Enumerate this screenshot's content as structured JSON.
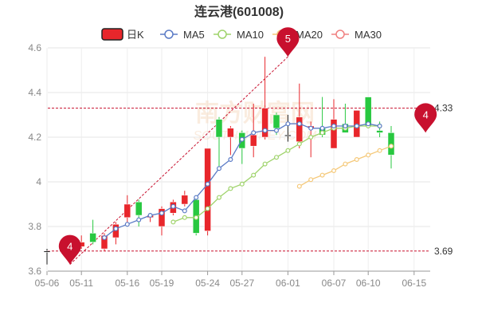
{
  "chart_data": {
    "type": "candlestick",
    "title": "连云港(601008)",
    "legend": [
      {
        "label": "日K",
        "color": "#e8262b",
        "kind": "box"
      },
      {
        "label": "MA5",
        "color": "#5b7bc6",
        "kind": "ring"
      },
      {
        "label": "MA10",
        "color": "#9fd36b",
        "kind": "ring"
      },
      {
        "label": "MA20",
        "color": "#f5c97a",
        "kind": "ring"
      },
      {
        "label": "MA30",
        "color": "#f08080",
        "kind": "ring"
      }
    ],
    "legend_placement": "top",
    "ylim": [
      3.6,
      4.6
    ],
    "y_ticks": [
      "3.6",
      "3.8",
      "4",
      "4.2",
      "4.4",
      "4.6"
    ],
    "x_tick_labels": [
      "05-06",
      "05-11",
      "05-16",
      "05-19",
      "05-24",
      "05-27",
      "06-01",
      "06-07",
      "06-10",
      "06-15"
    ],
    "x_tick_index": [
      0,
      3,
      7,
      10,
      14,
      17,
      21,
      25,
      28,
      32
    ],
    "grid": true,
    "colors": {
      "up": "#e8262b",
      "down": "#28c840",
      "neutral": "#1a1a1a",
      "ref_line": "#c8102e",
      "axis_text": "#888888"
    },
    "candles": [
      {
        "o": 3.69,
        "c": 3.69,
        "h": 3.7,
        "l": 3.63
      },
      {
        "o": 3.69,
        "c": 3.72,
        "h": 3.74,
        "l": 3.69
      },
      {
        "o": 3.71,
        "c": 3.73,
        "h": 3.76,
        "l": 3.7
      },
      {
        "o": 3.77,
        "c": 3.73,
        "h": 3.83,
        "l": 3.72
      },
      {
        "o": 3.7,
        "c": 3.76,
        "h": 3.77,
        "l": 3.69
      },
      {
        "o": 3.75,
        "c": 3.81,
        "h": 3.82,
        "l": 3.72
      },
      {
        "o": 3.84,
        "c": 3.9,
        "h": 3.94,
        "l": 3.8
      },
      {
        "o": 3.91,
        "c": 3.85,
        "h": 3.92,
        "l": 3.8
      },
      {
        "o": 3.84,
        "c": 3.85,
        "h": 3.86,
        "l": 3.82
      },
      {
        "o": 3.8,
        "c": 3.88,
        "h": 3.89,
        "l": 3.76
      },
      {
        "o": 3.86,
        "c": 3.91,
        "h": 3.92,
        "l": 3.85
      },
      {
        "o": 3.9,
        "c": 3.94,
        "h": 3.96,
        "l": 3.89
      },
      {
        "o": 3.92,
        "c": 3.77,
        "h": 3.94,
        "l": 3.76
      },
      {
        "o": 3.78,
        "c": 4.15,
        "h": 4.15,
        "l": 3.76
      },
      {
        "o": 4.28,
        "c": 4.2,
        "h": 4.29,
        "l": 4.05
      },
      {
        "o": 4.2,
        "c": 4.24,
        "h": 4.25,
        "l": 4.12
      },
      {
        "o": 4.22,
        "c": 4.15,
        "h": 4.23,
        "l": 4.08
      },
      {
        "o": 4.16,
        "c": 4.21,
        "h": 4.35,
        "l": 4.11
      },
      {
        "o": 4.2,
        "c": 4.33,
        "h": 4.56,
        "l": 4.19
      },
      {
        "o": 4.3,
        "c": 4.24,
        "h": 4.31,
        "l": 4.21
      },
      {
        "o": 4.21,
        "c": 4.21,
        "h": 4.3,
        "l": 4.18
      },
      {
        "o": 4.18,
        "c": 4.29,
        "h": 4.44,
        "l": 4.15
      },
      {
        "o": 4.24,
        "c": 4.25,
        "h": 4.27,
        "l": 4.11
      },
      {
        "o": 4.24,
        "c": 4.21,
        "h": 4.38,
        "l": 4.2
      },
      {
        "o": 4.15,
        "c": 4.28,
        "h": 4.37,
        "l": 4.15
      },
      {
        "o": 4.26,
        "c": 4.22,
        "h": 4.35,
        "l": 4.22
      },
      {
        "o": 4.2,
        "c": 4.32,
        "h": 4.32,
        "l": 4.2
      },
      {
        "o": 4.38,
        "c": 4.25,
        "h": 4.38,
        "l": 4.24
      },
      {
        "o": 4.23,
        "c": 4.22,
        "h": 4.27,
        "l": 4.2
      },
      {
        "o": 4.22,
        "c": 4.12,
        "h": 4.25,
        "l": 4.06
      }
    ],
    "candle_x_index": [
      0,
      2,
      3,
      4,
      5,
      6,
      7,
      8,
      9,
      10,
      11,
      12,
      13,
      14,
      15,
      16,
      17,
      18,
      19,
      20,
      21,
      22,
      23,
      24,
      25,
      26,
      27,
      28,
      29,
      30
    ],
    "ma5": {
      "name": "MA5",
      "x_index": [
        5,
        6,
        7,
        8,
        9,
        10,
        11,
        12,
        13,
        14,
        15,
        16,
        17,
        18,
        19,
        20,
        21,
        22,
        23,
        24,
        25,
        26,
        27,
        28,
        29
      ],
      "values": [
        3.75,
        3.79,
        3.81,
        3.83,
        3.85,
        3.86,
        3.89,
        3.87,
        3.93,
        3.99,
        4.06,
        4.1,
        4.19,
        4.22,
        4.23,
        4.23,
        4.26,
        4.26,
        4.24,
        4.24,
        4.25,
        4.25,
        4.25,
        4.26,
        4.25
      ]
    },
    "ma10": {
      "name": "MA10",
      "x_index": [
        11,
        12,
        13,
        14,
        15,
        16,
        17,
        18,
        19,
        20,
        21,
        22,
        23,
        24,
        25,
        26,
        27,
        28,
        29
      ],
      "values": [
        3.82,
        3.84,
        3.84,
        3.88,
        3.93,
        3.97,
        3.99,
        4.03,
        4.08,
        4.11,
        4.14,
        4.17,
        4.2,
        4.22,
        4.24,
        4.24,
        4.25,
        4.25,
        4.25
      ]
    },
    "ma20": {
      "name": "MA20",
      "x_index": [
        22,
        23,
        24,
        25,
        26,
        27,
        28,
        29,
        30
      ],
      "values": [
        3.98,
        4.01,
        4.03,
        4.05,
        4.08,
        4.1,
        4.12,
        4.14,
        4.16
      ]
    },
    "ref_lines": [
      {
        "value": 4.33,
        "label": "4.33"
      },
      {
        "value": 3.69,
        "label": "3.69"
      }
    ],
    "markers": [
      {
        "label": "5",
        "x_index": 21,
        "y": 4.56
      },
      {
        "label": "4",
        "x_index": 2,
        "y": 3.63
      },
      {
        "label": "4",
        "x_index": 33,
        "y": 4.22
      }
    ],
    "watermark": {
      "text": "南方财富网",
      "subtext": "SOUTHMONEY.COM"
    }
  }
}
